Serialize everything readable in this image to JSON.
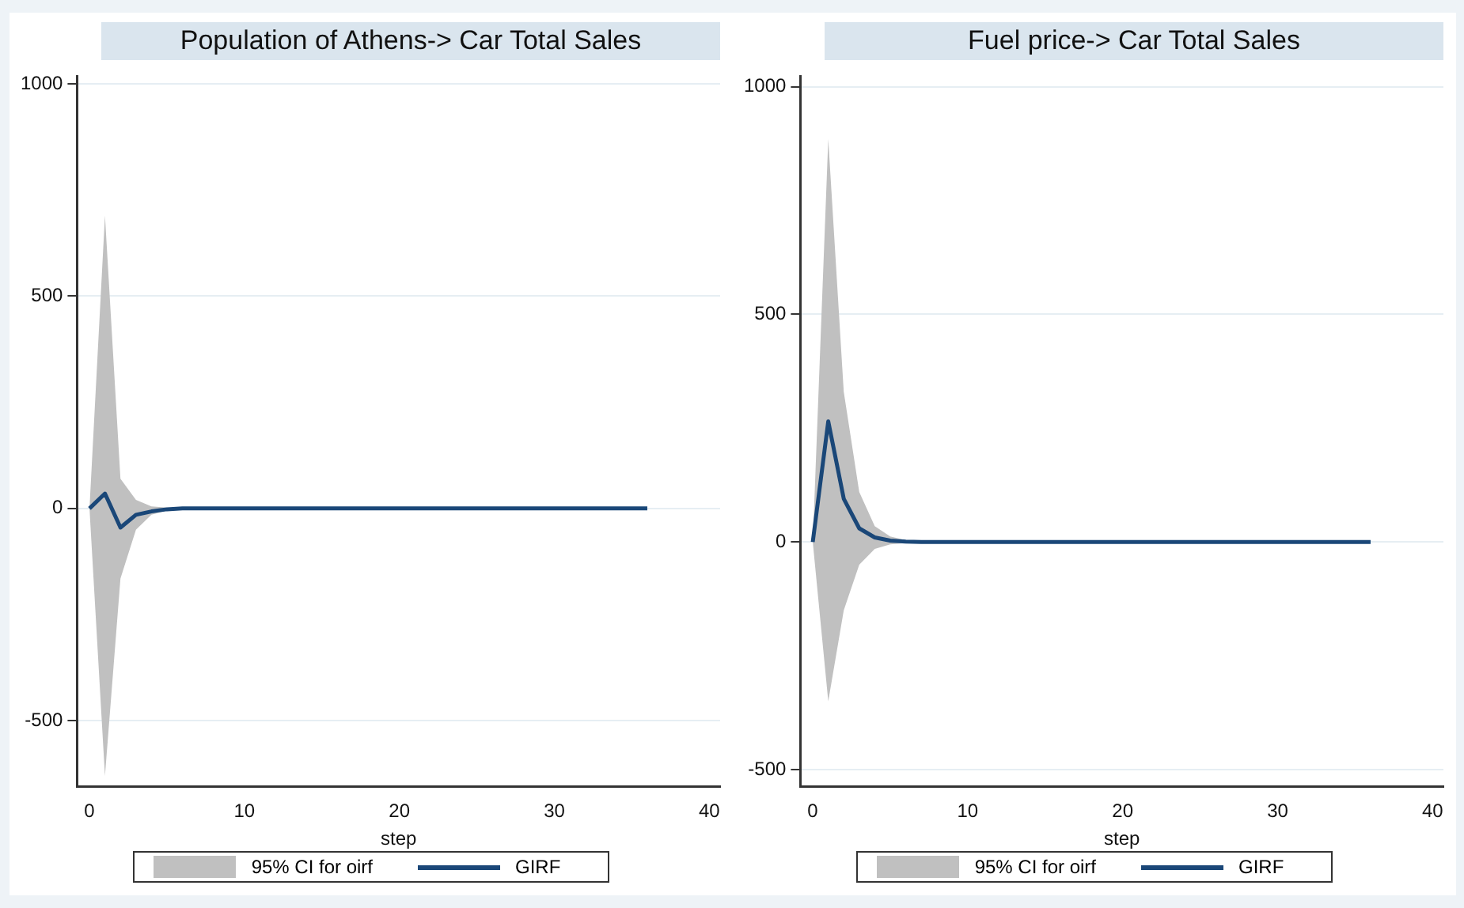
{
  "chart_data": [
    {
      "type": "line",
      "title": "Population of Athens-> Car Total Sales",
      "xlabel": "step",
      "x": [
        0,
        1,
        2,
        3,
        4,
        5,
        6,
        7,
        8,
        9,
        10,
        11,
        12,
        13,
        14,
        15,
        16,
        17,
        18,
        19,
        20,
        21,
        22,
        23,
        24,
        25,
        26,
        27,
        28,
        29,
        30,
        31,
        32,
        33,
        34,
        35,
        36
      ],
      "series": [
        {
          "name": "GIRF",
          "color": "#1a4778",
          "values": [
            0,
            35,
            -45,
            -15,
            -7,
            -2,
            0,
            0,
            0,
            0,
            0,
            0,
            0,
            0,
            0,
            0,
            0,
            0,
            0,
            0,
            0,
            0,
            0,
            0,
            0,
            0,
            0,
            0,
            0,
            0,
            0,
            0,
            0,
            0,
            0,
            0,
            0
          ],
          "lower": [
            0,
            -630,
            -165,
            -50,
            -15,
            -5,
            -1,
            0,
            0,
            0,
            0,
            0,
            0,
            0,
            0,
            0,
            0,
            0,
            0,
            0,
            0,
            0,
            0,
            0,
            0,
            0,
            0,
            0,
            0,
            0,
            0,
            0,
            0,
            0,
            0,
            0,
            0
          ],
          "upper": [
            0,
            690,
            70,
            20,
            5,
            2,
            0.5,
            0,
            0,
            0,
            0,
            0,
            0,
            0,
            0,
            0,
            0,
            0,
            0,
            0,
            0,
            0,
            0,
            0,
            0,
            0,
            0,
            0,
            0,
            0,
            0,
            0,
            0,
            0,
            0,
            0,
            0
          ]
        }
      ],
      "annotations": [
        "95% CI for oirf"
      ],
      "xlim": [
        -0.8,
        40.7
      ],
      "xticks": [
        0,
        10,
        20,
        30,
        40
      ],
      "ylim": [
        -655,
        1018
      ],
      "yticks": [
        -500,
        0,
        500,
        1000
      ],
      "grid": "y",
      "legend": "bottom",
      "marker": "none"
    },
    {
      "type": "line",
      "title": "Fuel price-> Car Total Sales",
      "xlabel": "step",
      "x": [
        0,
        1,
        2,
        3,
        4,
        5,
        6,
        7,
        8,
        9,
        10,
        11,
        12,
        13,
        14,
        15,
        16,
        17,
        18,
        19,
        20,
        21,
        22,
        23,
        24,
        25,
        26,
        27,
        28,
        29,
        30,
        31,
        32,
        33,
        34,
        35,
        36
      ],
      "series": [
        {
          "name": "GIRF",
          "color": "#1a4778",
          "values": [
            0,
            265,
            95,
            30,
            10,
            3,
            1,
            0,
            0,
            0,
            0,
            0,
            0,
            0,
            0,
            0,
            0,
            0,
            0,
            0,
            0,
            0,
            0,
            0,
            0,
            0,
            0,
            0,
            0,
            0,
            0,
            0,
            0,
            0,
            0,
            0,
            0
          ],
          "lower": [
            0,
            -350,
            -150,
            -50,
            -15,
            -5,
            -2,
            0,
            0,
            0,
            0,
            0,
            0,
            0,
            0,
            0,
            0,
            0,
            0,
            0,
            0,
            0,
            0,
            0,
            0,
            0,
            0,
            0,
            0,
            0,
            0,
            0,
            0,
            0,
            0,
            0,
            0
          ],
          "upper": [
            0,
            885,
            330,
            110,
            35,
            12,
            4,
            1,
            0,
            0,
            0,
            0,
            0,
            0,
            0,
            0,
            0,
            0,
            0,
            0,
            0,
            0,
            0,
            0,
            0,
            0,
            0,
            0,
            0,
            0,
            0,
            0,
            0,
            0,
            0,
            0,
            0
          ]
        }
      ],
      "annotations": [
        "95% CI for oirf"
      ],
      "xlim": [
        -0.8,
        40.7
      ],
      "xticks": [
        0,
        10,
        20,
        30,
        40
      ],
      "ylim": [
        -537,
        1023
      ],
      "yticks": [
        -500,
        0,
        500,
        1000
      ],
      "grid": "y",
      "legend": "bottom",
      "marker": "none"
    }
  ]
}
